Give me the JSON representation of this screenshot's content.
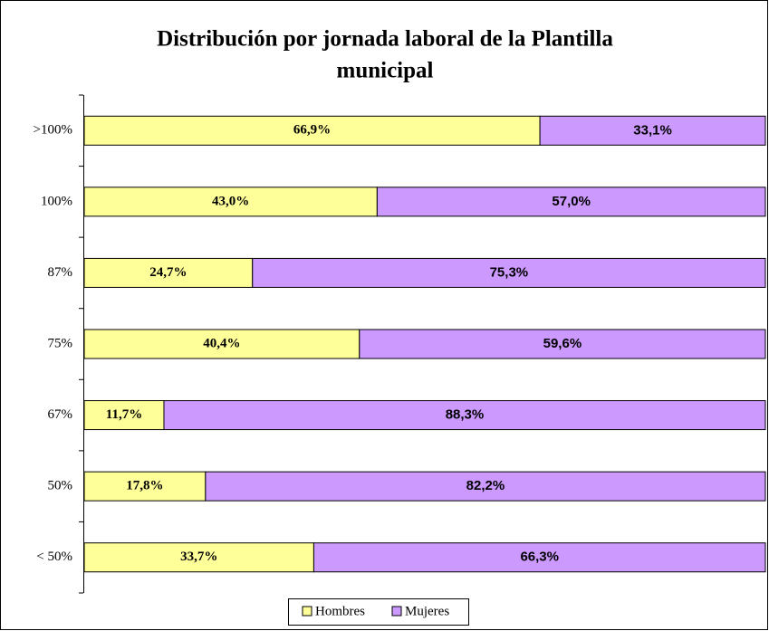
{
  "chart_data": {
    "type": "stacked-bar-horizontal",
    "title": "Distribución por jornada laboral de la Plantilla municipal",
    "title_lines": [
      "Distribución por jornada laboral de la Plantilla",
      "municipal"
    ],
    "categories": [
      ">100%",
      "100%",
      "87%",
      "75%",
      "67%",
      "50%",
      "< 50%"
    ],
    "series": [
      {
        "name": "Hombres",
        "color": "#ffff99",
        "values": [
          66.9,
          43.0,
          24.7,
          40.4,
          11.7,
          17.8,
          33.7
        ],
        "value_labels": [
          "66,9%",
          "43,0%",
          "24,7%",
          "40,4%",
          "11,7%",
          "17,8%",
          "33,7%"
        ]
      },
      {
        "name": "Mujeres",
        "color": "#cc99ff",
        "values": [
          33.1,
          57.0,
          75.3,
          59.6,
          88.3,
          82.2,
          66.3
        ],
        "value_labels": [
          "33,1%",
          "57,0%",
          "75,3%",
          "59,6%",
          "88,3%",
          "82,2%",
          "66,3%"
        ]
      }
    ],
    "legend": "bottom"
  }
}
